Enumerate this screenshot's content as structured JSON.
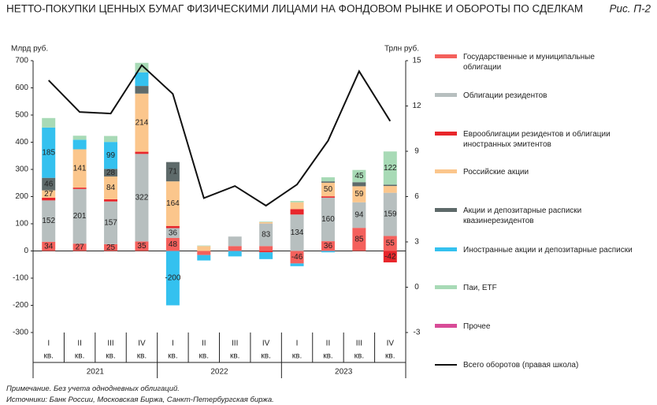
{
  "chart_data": {
    "type": "bar",
    "stacked": true,
    "title": "НЕТТО-ПОКУПКИ ЦЕННЫХ БУМАГ ФИЗИЧЕСКИМИ ЛИЦАМИ НА ФОНДОВОМ РЫНКЕ И ОБОРОТЫ ПО СДЕЛКАМ",
    "figure_label": "Рис. П-2",
    "y_label": "Млрд руб.",
    "y2_label": "Трлн руб.",
    "categories": [
      "I",
      "II",
      "III",
      "IV",
      "I",
      "II",
      "III",
      "IV",
      "I",
      "II",
      "III",
      "IV"
    ],
    "category_suffix": "кв.",
    "years": [
      "2021",
      "2022",
      "2023"
    ],
    "ylim": [
      -300,
      700
    ],
    "yticks": [
      -300,
      -200,
      -100,
      0,
      100,
      200,
      300,
      400,
      500,
      600,
      700
    ],
    "y2lim": [
      -3,
      15
    ],
    "y2ticks": [
      -3,
      0,
      3,
      6,
      9,
      12,
      15
    ],
    "series": [
      {
        "name": "Государственные и муниципальные облигации",
        "color": "#f4605c",
        "values": [
          34,
          27,
          25,
          35,
          48,
          -15,
          18,
          18,
          -46,
          36,
          85,
          55
        ],
        "value_labels": [
          "34",
          "27",
          "25",
          "35",
          "48",
          null,
          null,
          null,
          "-46",
          "36",
          "85",
          "55"
        ]
      },
      {
        "name": "Облигации резидентов",
        "color": "#b7bfbf",
        "values": [
          152,
          201,
          157,
          322,
          36,
          0,
          35,
          83,
          134,
          160,
          94,
          159
        ],
        "value_labels": [
          "152",
          "201",
          "157",
          "322",
          "36",
          null,
          null,
          "83",
          "134",
          "160",
          "94",
          "159"
        ]
      },
      {
        "name": "Еврооблигации резидентов и облигации иностранных эмитентов",
        "color": "#e8262b",
        "values": [
          10,
          5,
          8,
          8,
          8,
          0,
          0,
          -5,
          20,
          5,
          0,
          -42
        ],
        "value_labels": [
          null,
          null,
          null,
          null,
          null,
          null,
          null,
          null,
          null,
          null,
          null,
          "-42"
        ]
      },
      {
        "name": "Российские акции",
        "color": "#fbc68c",
        "values": [
          27,
          141,
          84,
          214,
          164,
          18,
          0,
          5,
          25,
          50,
          59,
          25
        ],
        "value_labels": [
          "27",
          "141",
          "84",
          "214",
          "164",
          null,
          null,
          null,
          null,
          "50",
          "59",
          null
        ]
      },
      {
        "name": "Акции и депозитарные расписки квазинерезидентов",
        "color": "#5e6a6a",
        "values": [
          46,
          0,
          28,
          28,
          71,
          0,
          0,
          0,
          0,
          5,
          15,
          5
        ],
        "value_labels": [
          "46",
          null,
          "28",
          null,
          "71",
          null,
          null,
          null,
          null,
          null,
          null,
          null
        ]
      },
      {
        "name": "Иностранные акции и депозитарные расписки",
        "color": "#34c1ef",
        "values": [
          185,
          35,
          99,
          50,
          -200,
          -20,
          -20,
          -25,
          -10,
          -5,
          0,
          0
        ],
        "value_labels": [
          "185",
          null,
          "99",
          null,
          "-200",
          null,
          null,
          null,
          null,
          null,
          null,
          null
        ]
      },
      {
        "name": "Паи, ETF",
        "color": "#a8dab6",
        "values": [
          35,
          15,
          22,
          35,
          0,
          2,
          0,
          2,
          5,
          15,
          45,
          122
        ],
        "value_labels": [
          null,
          null,
          null,
          null,
          null,
          null,
          null,
          null,
          null,
          null,
          "45",
          "122"
        ]
      },
      {
        "name": "Прочее",
        "color": "#d84b97",
        "values": [
          0,
          0,
          0,
          0,
          0,
          0,
          0,
          0,
          0,
          0,
          0,
          0
        ]
      },
      {
        "name": "Всего оборотов (правая школа)",
        "color": "#111111",
        "axis": "y2",
        "values": [
          13.7,
          11.6,
          11.5,
          14.7,
          12.8,
          5.9,
          6.7,
          5.4,
          6.8,
          9.7,
          14.3,
          11.0
        ]
      }
    ],
    "notes": [
      "Примечание. Без учета однодневных облигаций.",
      "Источники: Банк России, Московская Биржа, Санкт-Петербургская биржа."
    ]
  }
}
